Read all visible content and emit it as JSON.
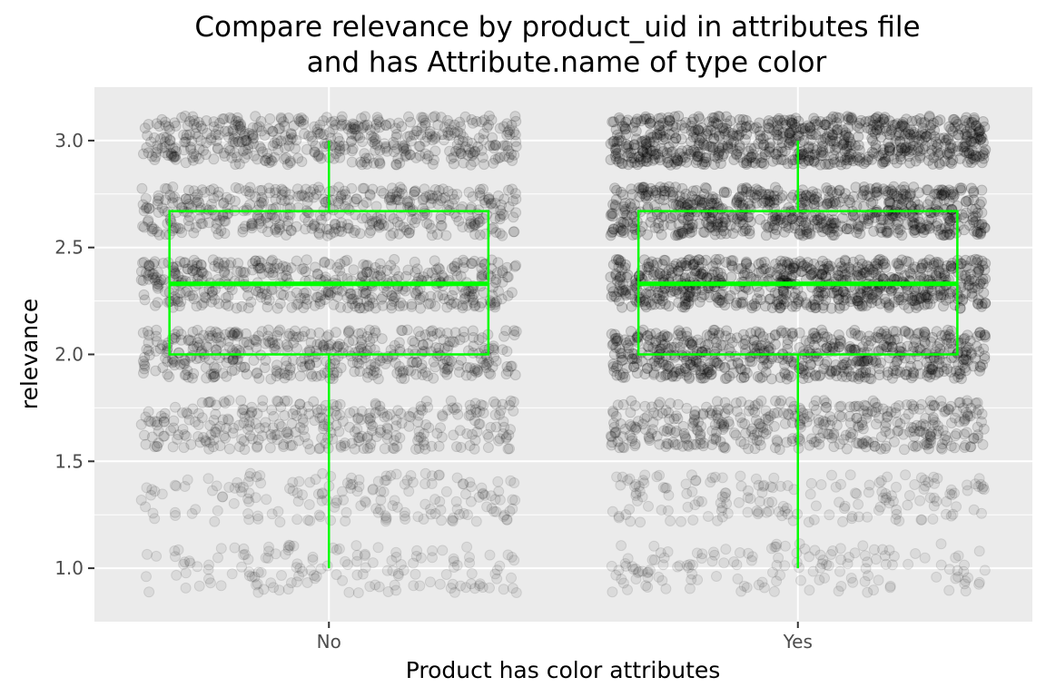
{
  "chart_data": {
    "type": "boxplot with jittered points",
    "title": "Compare relevance by product_uid in attributes file and has Attribute.name of type color",
    "title_lines": [
      "Compare relevance by product_uid in attributes file",
      "and has Attribute.name of type color"
    ],
    "xlabel": "Product has color attributes",
    "ylabel": "relevance",
    "categories": [
      "No",
      "Yes"
    ],
    "ylim": [
      0.75,
      3.25
    ],
    "yticks": [
      1.0,
      1.5,
      2.0,
      2.5,
      3.0
    ],
    "ytick_labels": [
      "1.0",
      "1.5",
      "2.0",
      "2.5",
      "3.0"
    ],
    "grid": true,
    "relevance_levels": [
      1.0,
      1.33,
      1.67,
      2.0,
      2.33,
      2.67,
      3.0
    ],
    "point_density": {
      "No": [
        0.1,
        0.13,
        0.3,
        0.42,
        0.45,
        0.42,
        0.45
      ],
      "Yes": [
        0.1,
        0.13,
        0.4,
        0.62,
        0.72,
        0.68,
        0.75
      ]
    },
    "boxes": [
      {
        "category": "No",
        "min": 1.0,
        "q1": 2.0,
        "median": 2.33,
        "q3": 2.67,
        "max": 3.0
      },
      {
        "category": "Yes",
        "min": 1.0,
        "q1": 2.0,
        "median": 2.33,
        "q3": 2.67,
        "max": 3.0
      }
    ],
    "colors": {
      "panel": "#ebebeb",
      "grid": "#ffffff",
      "points": "#000000",
      "box": "#00ff00"
    }
  }
}
